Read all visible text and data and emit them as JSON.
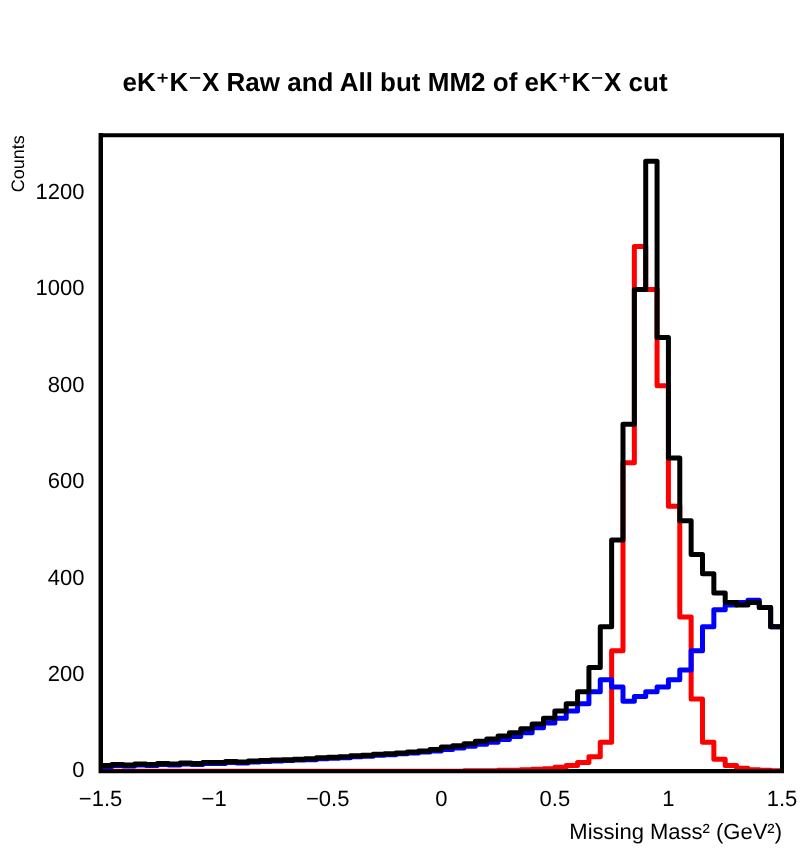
{
  "chart_data": {
    "type": "histogram",
    "title": "eK⁺K⁻X Raw and All but MM2 of eK⁺K⁻X cut",
    "xlabel": "Missing Mass² (GeV²)",
    "ylabel": "Counts",
    "bins": [
      -1.5,
      -1.45,
      -1.4,
      -1.35,
      -1.3,
      -1.25,
      -1.2,
      -1.15,
      -1.1,
      -1.05,
      -1.0,
      -0.95,
      -0.9,
      -0.85,
      -0.8,
      -0.75,
      -0.7,
      -0.65,
      -0.6,
      -0.55,
      -0.5,
      -0.45,
      -0.4,
      -0.35,
      -0.3,
      -0.25,
      -0.2,
      -0.15,
      -0.1,
      -0.05,
      0,
      0.05,
      0.1,
      0.15,
      0.2,
      0.25,
      0.3,
      0.35,
      0.4,
      0.45,
      0.5,
      0.55,
      0.6,
      0.65,
      0.7,
      0.75,
      0.8,
      0.85,
      0.9,
      0.95,
      1.0,
      1.05,
      1.1,
      1.15,
      1.2,
      1.25,
      1.3,
      1.35,
      1.4,
      1.45,
      1.5
    ],
    "series": [
      {
        "color": "#000000",
        "values": [
          12,
          14,
          13,
          15,
          14,
          16,
          15,
          17,
          16,
          18,
          18,
          20,
          19,
          21,
          22,
          23,
          24,
          25,
          26,
          28,
          29,
          30,
          32,
          33,
          35,
          36,
          38,
          40,
          42,
          45,
          50,
          53,
          57,
          62,
          67,
          73,
          80,
          88,
          98,
          110,
          125,
          140,
          165,
          215,
          300,
          480,
          720,
          1000,
          1266,
          900,
          650,
          520,
          450,
          410,
          370,
          350,
          345,
          350,
          340,
          300
        ]
      },
      {
        "color": "#0000ff",
        "values": [
          10,
          12,
          11,
          13,
          12,
          14,
          13,
          15,
          14,
          16,
          16,
          18,
          17,
          19,
          20,
          21,
          22,
          23,
          24,
          26,
          27,
          28,
          30,
          31,
          33,
          34,
          36,
          38,
          40,
          42,
          45,
          48,
          52,
          56,
          60,
          66,
          72,
          80,
          90,
          100,
          110,
          125,
          140,
          165,
          190,
          175,
          145,
          155,
          165,
          175,
          190,
          210,
          250,
          300,
          335,
          345,
          350,
          355,
          340,
          300
        ]
      },
      {
        "color": "#ff0000",
        "values": [
          0,
          0,
          0,
          0,
          0,
          0,
          0,
          0,
          0,
          0,
          0,
          0,
          0,
          0,
          0,
          0,
          0,
          0,
          0,
          0,
          0,
          0,
          0,
          0,
          0,
          0,
          0,
          0,
          0,
          0,
          0,
          0,
          1,
          1,
          1,
          2,
          2,
          3,
          4,
          5,
          8,
          12,
          18,
          30,
          60,
          250,
          640,
          1089,
          1000,
          800,
          550,
          320,
          150,
          60,
          25,
          12,
          6,
          3,
          2,
          1
        ]
      }
    ],
    "xlim": [
      -1.5,
      1.5
    ],
    "xticks": [
      -1.5,
      -1,
      -0.5,
      0,
      0.5,
      1,
      1.5
    ],
    "ylim": [
      0,
      1320
    ],
    "yticks": [
      0,
      200,
      400,
      600,
      800,
      1000,
      1200
    ],
    "grid": false,
    "legend": false
  }
}
